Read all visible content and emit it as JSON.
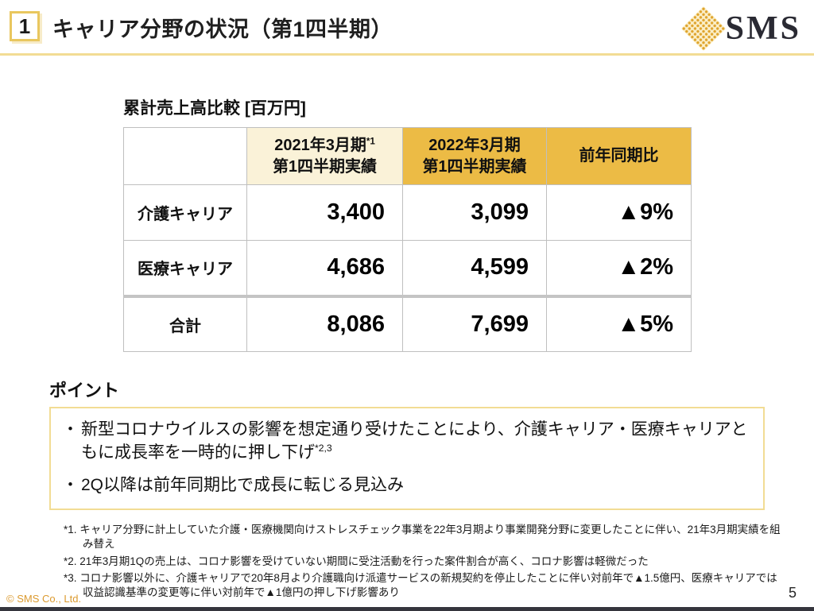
{
  "header": {
    "slide_number": "1",
    "title": "キャリア分野の状況（第1四半期）",
    "logo": {
      "text": "SMS",
      "icon": "gold-dotted-diamond"
    }
  },
  "table": {
    "title": "累計売上高比較 [百万円]",
    "columns": [
      {
        "line1": "2021年3月期",
        "sup": "*1",
        "line2": "第1四半期実績"
      },
      {
        "line1": "2022年3月期",
        "sup": "",
        "line2": "第1四半期実績"
      },
      {
        "line1": "前年同期比",
        "sup": "",
        "line2": ""
      }
    ],
    "rows": [
      {
        "label": "介護キャリア",
        "fy2021": "3,400",
        "fy2022": "3,099",
        "yoy": "▲9%"
      },
      {
        "label": "医療キャリア",
        "fy2021": "4,686",
        "fy2022": "4,599",
        "yoy": "▲2%"
      },
      {
        "label": "合計",
        "fy2021": "8,086",
        "fy2022": "7,699",
        "yoy": "▲5%"
      }
    ]
  },
  "points": {
    "heading": "ポイント",
    "bullets": [
      {
        "text": "新型コロナウイルスの影響を想定通り受けたことにより、介護キャリア・医療キャリアともに成長率を一時的に押し下げ",
        "sup": "*2,3"
      },
      {
        "text": "2Q以降は前年同期比で成長に転じる見込み",
        "sup": ""
      }
    ]
  },
  "footnotes": [
    "*1. キャリア分野に計上していた介護・医療機関向けストレスチェック事業を22年3月期より事業開発分野に変更したことに伴い、21年3月期実績を組み替え",
    "*2. 21年3月期1Qの売上は、コロナ影響を受けていない期間に受注活動を行った案件割合が高く、コロナ影響は軽微だった",
    "*3. コロナ影響以外に、介護キャリアで20年8月より介護職向け派遣サービスの新規契約を停止したことに伴い対前年で▲1.5億円、医療キャリアでは収益認識基準の変更等に伴い対前年で▲1億円の押し下げ影響あり"
  ],
  "footer": {
    "copyright": "© SMS Co., Ltd.",
    "page_number": "5"
  },
  "colors": {
    "gold_header": "#ECBB45",
    "cream_header": "#FAF2D8",
    "accent_line": "#F2DC94",
    "accent_strong": "#E9C75F",
    "table_border": "#BFBFBF",
    "copyright": "#DB9A2F",
    "bottom_bar": "#35353D"
  }
}
